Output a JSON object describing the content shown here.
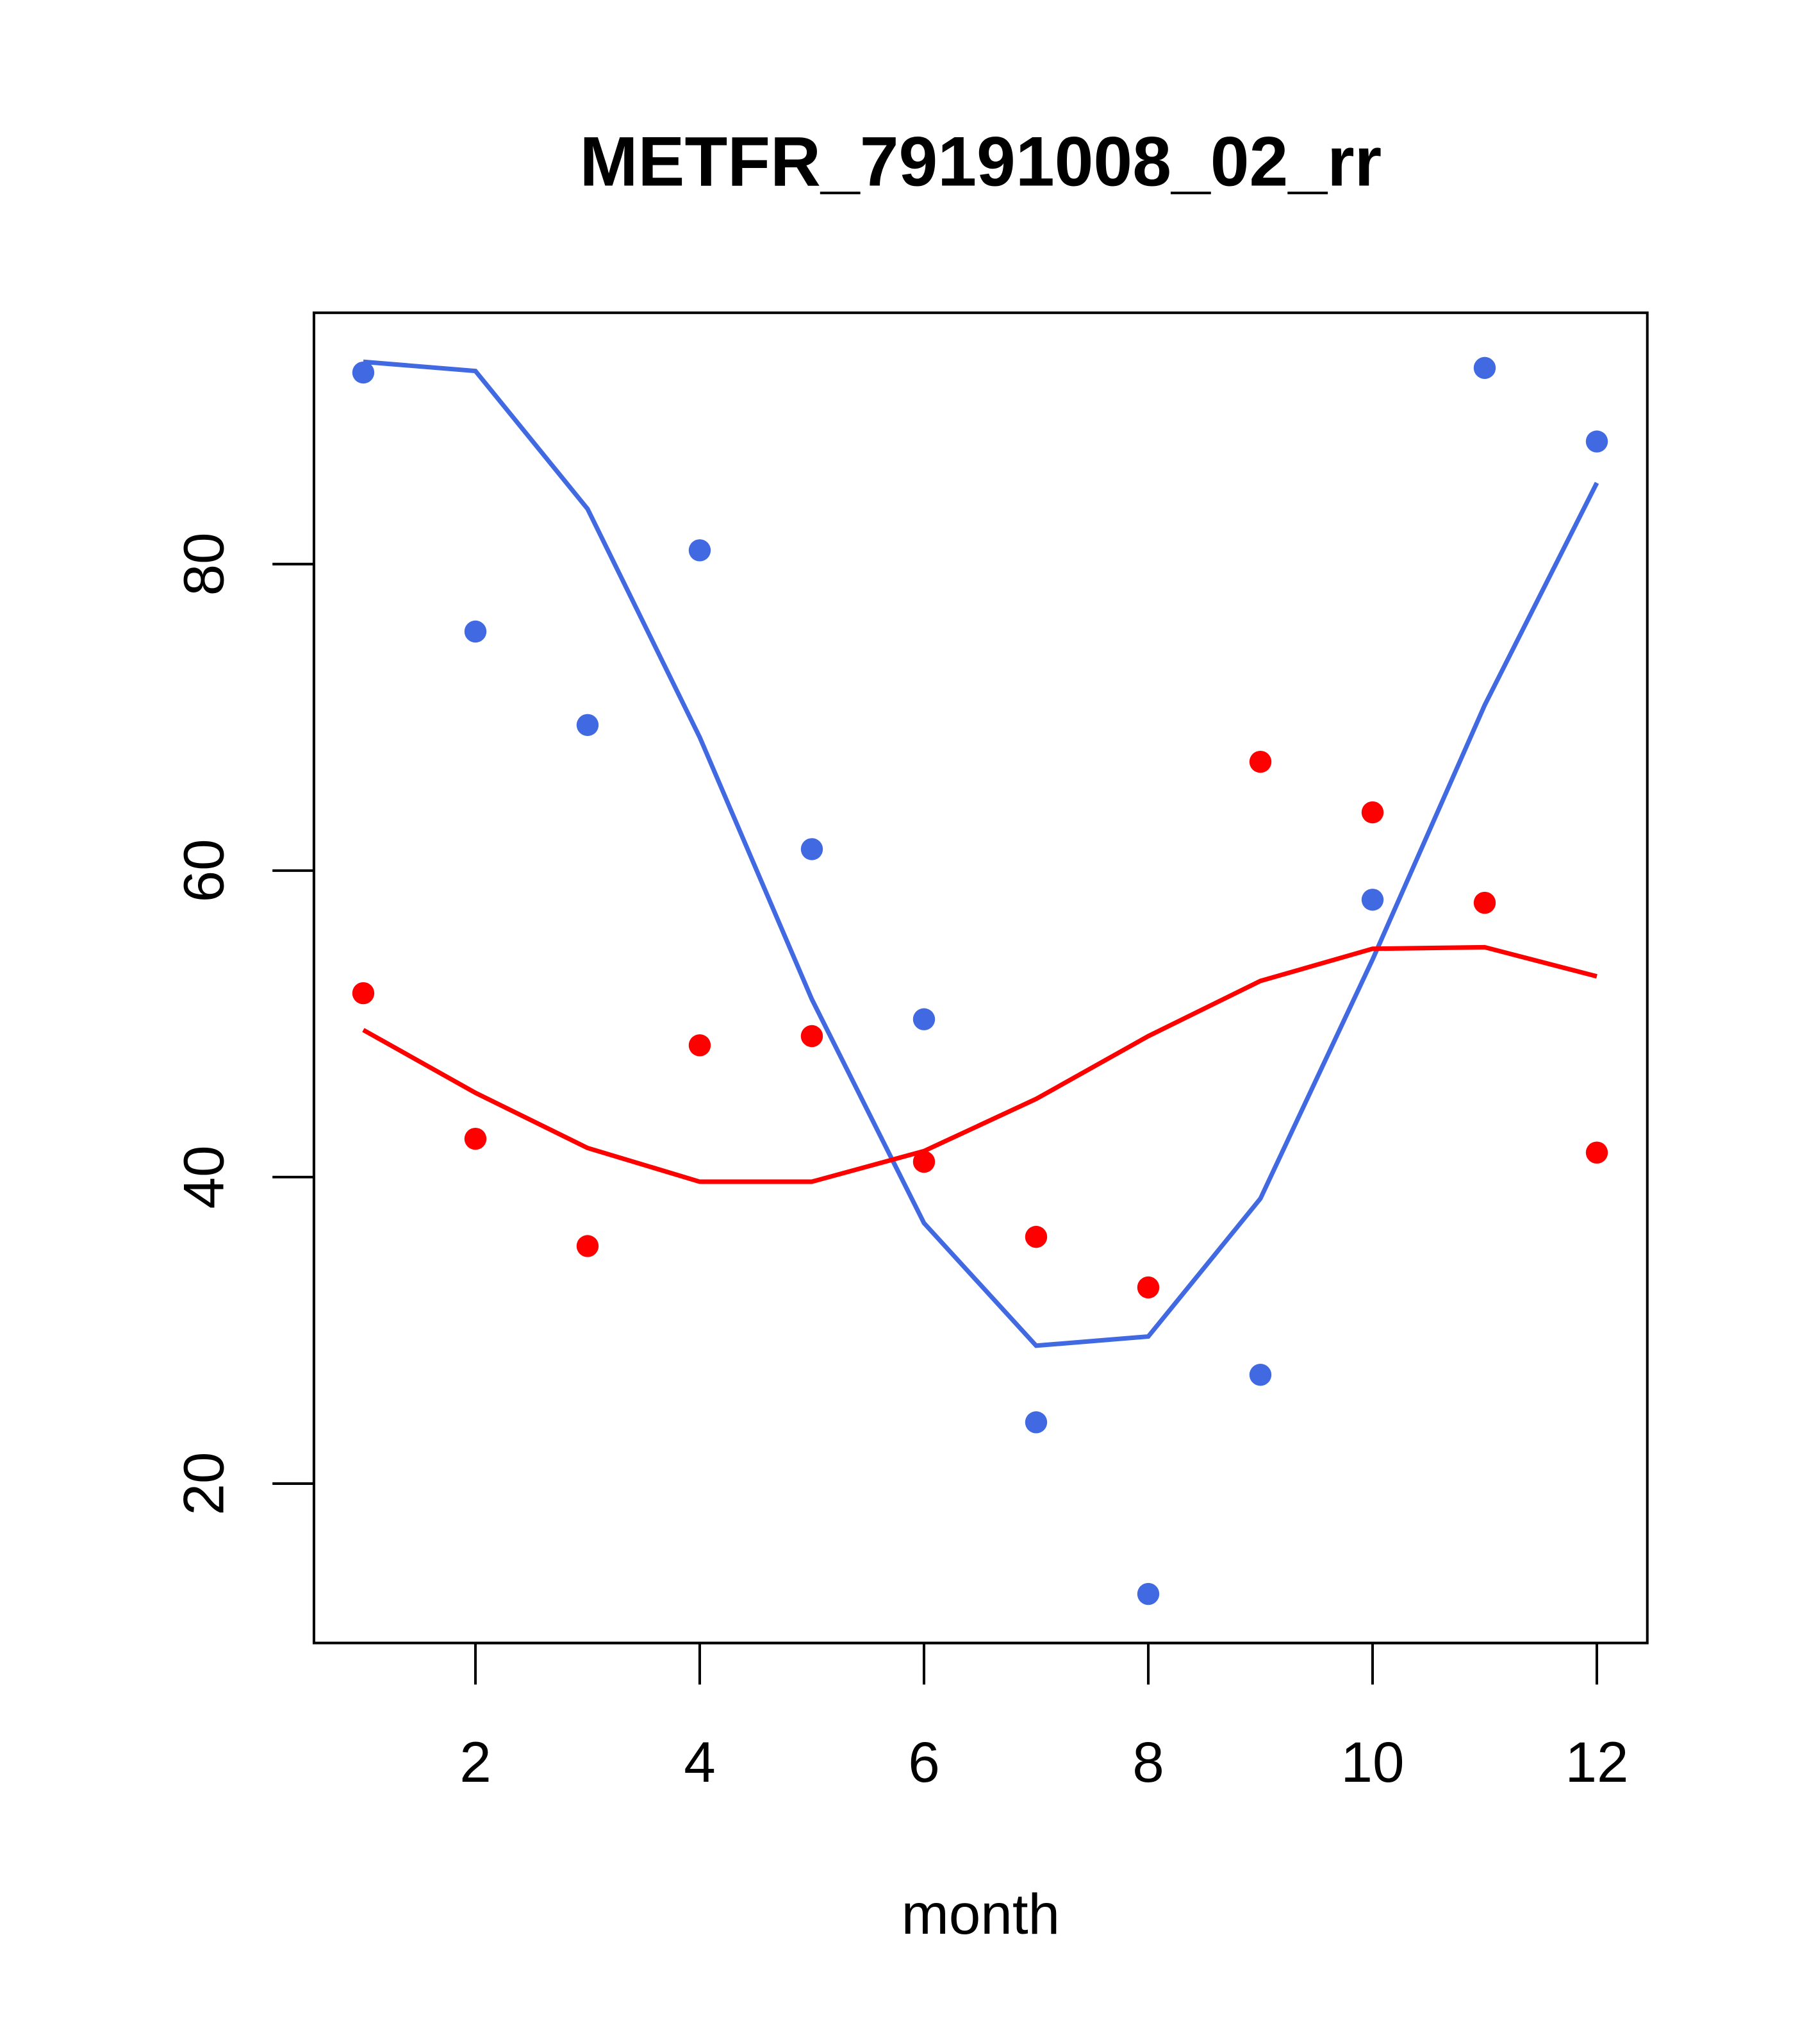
{
  "chart_data": {
    "type": "scatter",
    "title": "METFR_79191008_02_rr",
    "xlabel": "month",
    "ylabel": "",
    "xlim": [
      0.56,
      12.45
    ],
    "ylim": [
      9.6,
      96.4
    ],
    "xticks": [
      2,
      4,
      6,
      8,
      10,
      12
    ],
    "yticks": [
      20,
      40,
      60,
      80
    ],
    "grid": false,
    "x": [
      1,
      2,
      3,
      4,
      5,
      6,
      7,
      8,
      9,
      10,
      11,
      12
    ],
    "series": [
      {
        "name": "blue points",
        "kind": "points",
        "color": "#4169E1",
        "values": [
          92.5,
          75.6,
          69.5,
          80.9,
          61.4,
          50.3,
          24.0,
          12.8,
          27.1,
          58.1,
          92.8,
          88.0
        ]
      },
      {
        "name": "blue line",
        "kind": "line",
        "color": "#4169E1",
        "values": [
          93.2,
          92.6,
          83.6,
          68.7,
          51.6,
          37.0,
          29.0,
          29.6,
          38.6,
          54.2,
          70.8,
          85.3
        ]
      },
      {
        "name": "red points",
        "kind": "points",
        "color": "#FF0000",
        "values": [
          52.0,
          42.5,
          35.5,
          48.6,
          49.2,
          41.0,
          36.1,
          32.8,
          67.1,
          63.8,
          57.9,
          41.6
        ]
      },
      {
        "name": "red line",
        "kind": "line",
        "color": "#FF0000",
        "values": [
          49.6,
          45.5,
          41.9,
          39.7,
          39.7,
          41.7,
          45.1,
          49.2,
          52.8,
          54.9,
          55.0,
          53.1
        ]
      }
    ]
  }
}
